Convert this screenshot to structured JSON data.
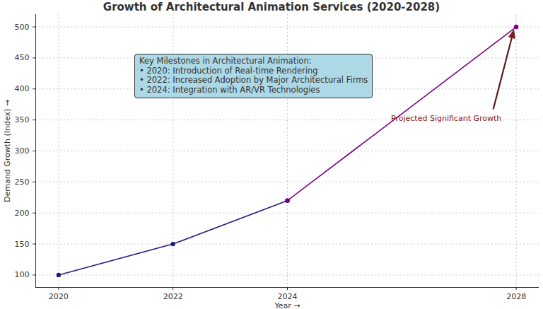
{
  "chart_data": {
    "type": "line",
    "title": "Growth of Architectural Animation Services (2020-2028)",
    "x_label": "Year",
    "y_label": "Demand Growth (Index)",
    "x": [
      2020,
      2022,
      2024,
      2028
    ],
    "series": [
      {
        "color": "#1c1c80",
        "marker": "o",
        "line_style": "solid",
        "values": [
          100,
          150,
          220,
          null
        ]
      },
      {
        "color": "#800080",
        "marker": "o",
        "line_style": "solid",
        "values": [
          null,
          null,
          220,
          500
        ]
      }
    ],
    "xlim": [
      2019.6,
      2028.4
    ],
    "xticks": [
      2020,
      2022,
      2024,
      2028
    ],
    "ylim": [
      80,
      520
    ],
    "yticks": [
      100,
      150,
      200,
      250,
      300,
      350,
      400,
      450,
      500
    ],
    "grid": true,
    "annotations": [
      {
        "title": "Key Milestones in Architectural Animation:",
        "items": [
          "• 2020: Introduction of Real-time Rendering",
          "• 2022: Increased Adoption by Major Architectural Firms",
          "• 2024: Integration with AR/VR Technologies"
        ]
      },
      {
        "text": "Projected Significant Growth",
        "x": 2028,
        "y": 500
      }
    ]
  }
}
